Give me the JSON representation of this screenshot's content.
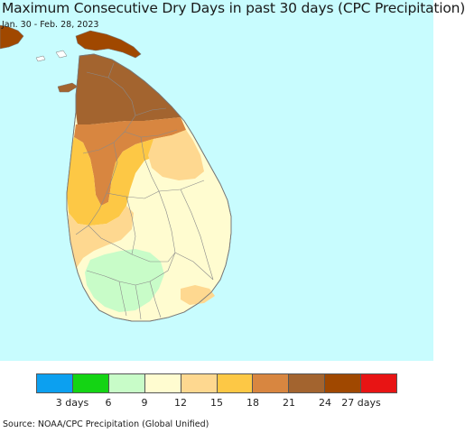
{
  "title": "Maximum Consecutive Dry Days in past 30 days (CPC Precipitation)",
  "subtitle": "Jan. 30 - Feb. 28, 2023",
  "source": "Source: NOAA/CPC Precipitation (Global Unified)",
  "colors": {
    "ocean": "#c8fcfe",
    "outside_land": "#ffffff",
    "border": "#777777"
  },
  "legend": {
    "colors": [
      "#0ca0f0",
      "#14d414",
      "#c8fcc8",
      "#fffcd0",
      "#fed890",
      "#fdc845",
      "#d88640",
      "#a3642f",
      "#a04800",
      "#e81414"
    ],
    "tick_labels": [
      "3 days",
      "6",
      "9",
      "12",
      "15",
      "18",
      "21",
      "24",
      "27 days"
    ]
  }
}
